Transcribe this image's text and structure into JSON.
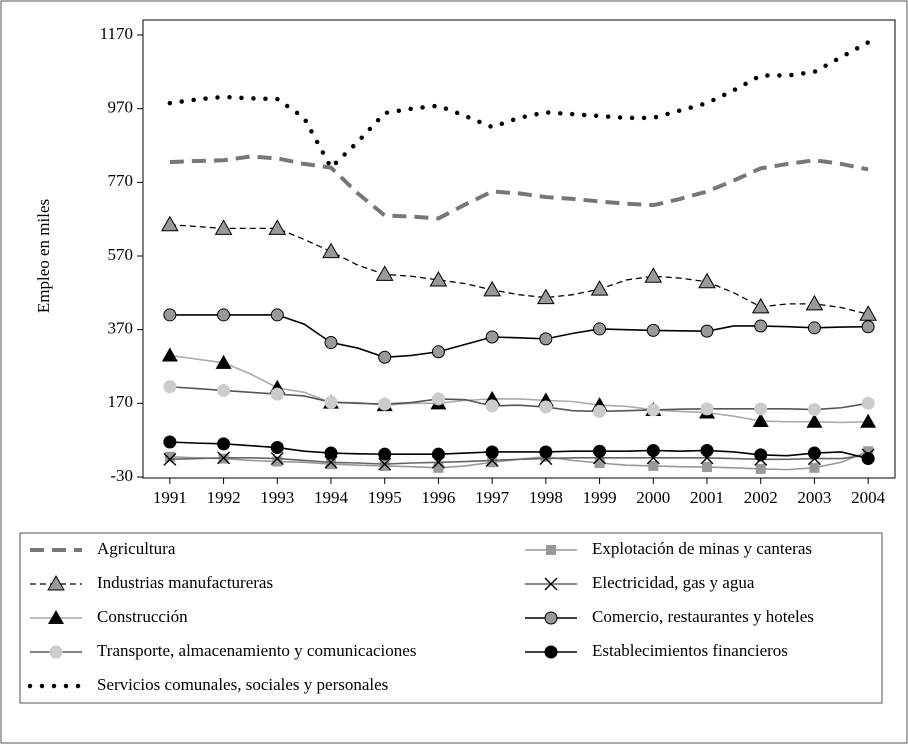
{
  "chart_data": {
    "type": "line",
    "y_label": "Empleo en miles",
    "x": [
      1991,
      1991.5,
      1992,
      1992.5,
      1993,
      1993.5,
      1994,
      1994.5,
      1995,
      1995.5,
      1996,
      1996.5,
      1997,
      1997.5,
      1998,
      1998.5,
      1999,
      1999.5,
      2000,
      2000.5,
      2001,
      2001.5,
      2002,
      2002.5,
      2003,
      2003.5,
      2004
    ],
    "xlim": [
      1990.5,
      2004.5
    ],
    "xticks": [
      1991,
      1992,
      1993,
      1994,
      1995,
      1996,
      1997,
      1998,
      1999,
      2000,
      2001,
      2002,
      2003,
      2004
    ],
    "ylim": [
      -30,
      1170
    ],
    "yticks": [
      -30,
      170,
      370,
      570,
      770,
      970,
      1170
    ],
    "series": [
      {
        "name": "Agricultura",
        "color": "#777777",
        "line_style": "dashed-thick",
        "marker": "none",
        "values": [
          825,
          828,
          830,
          840,
          835,
          820,
          810,
          740,
          680,
          677,
          672,
          710,
          745,
          740,
          730,
          725,
          718,
          712,
          708,
          725,
          745,
          775,
          808,
          820,
          830,
          820,
          805
        ]
      },
      {
        "name": "Industrias manufactureras",
        "color": "#000000",
        "line_style": "dashed",
        "marker": "triangle-gray",
        "values": [
          655,
          650,
          645,
          645,
          645,
          615,
          582,
          545,
          520,
          515,
          505,
          495,
          478,
          465,
          457,
          465,
          480,
          505,
          515,
          510,
          500,
          470,
          432,
          440,
          440,
          430,
          412
        ]
      },
      {
        "name": "Construcción",
        "color": "#aaaaaa",
        "line_style": "solid",
        "marker": "triangle-black",
        "values": [
          300,
          290,
          280,
          250,
          212,
          200,
          172,
          172,
          165,
          170,
          170,
          178,
          182,
          182,
          178,
          175,
          165,
          162,
          152,
          148,
          145,
          135,
          122,
          120,
          120,
          118,
          120
        ]
      },
      {
        "name": "Transporte, almacenamiento y comunicaciones",
        "color": "#555555",
        "line_style": "solid",
        "marker": "circle-lightgray",
        "values": [
          215,
          210,
          205,
          200,
          195,
          190,
          173,
          170,
          168,
          172,
          182,
          180,
          163,
          165,
          160,
          150,
          148,
          150,
          152,
          154,
          155,
          155,
          155,
          155,
          153,
          158,
          170
        ]
      },
      {
        "name": "Servicios comunales, sociales y personales",
        "color": "#000000",
        "line_style": "dotted",
        "marker": "none",
        "values": [
          985,
          995,
          1002,
          998,
          996,
          945,
          810,
          880,
          958,
          970,
          978,
          950,
          920,
          945,
          960,
          955,
          950,
          945,
          945,
          965,
          985,
          1020,
          1060,
          1060,
          1070,
          1110,
          1150
        ]
      },
      {
        "name": "Explotación de minas y canteras",
        "color": "#999999",
        "line_style": "solid",
        "marker": "square-gray",
        "values": [
          25,
          22,
          20,
          15,
          12,
          10,
          5,
          2,
          0,
          -2,
          -5,
          0,
          10,
          18,
          25,
          15,
          8,
          2,
          0,
          -2,
          -3,
          -5,
          -8,
          -10,
          -5,
          10,
          40
        ]
      },
      {
        "name": "Electricidad, gas y agua",
        "color": "#666666",
        "line_style": "solid",
        "marker": "cross",
        "values": [
          18,
          20,
          22,
          22,
          20,
          15,
          10,
          8,
          5,
          8,
          10,
          12,
          15,
          18,
          20,
          22,
          22,
          22,
          22,
          22,
          22,
          20,
          18,
          18,
          20,
          20,
          30
        ]
      },
      {
        "name": "Comercio, restaurantes y hoteles",
        "color": "#000000",
        "line_style": "solid",
        "marker": "circle-gray",
        "values": [
          410,
          410,
          410,
          410,
          410,
          385,
          335,
          320,
          295,
          300,
          310,
          330,
          350,
          348,
          345,
          360,
          372,
          370,
          368,
          367,
          366,
          380,
          380,
          378,
          375,
          377,
          378
        ]
      },
      {
        "name": "Establecimientos financieros",
        "color": "#000000",
        "line_style": "solid",
        "marker": "circle-black",
        "values": [
          65,
          62,
          60,
          55,
          50,
          40,
          35,
          33,
          32,
          32,
          32,
          35,
          38,
          38,
          38,
          40,
          40,
          40,
          42,
          40,
          42,
          38,
          30,
          28,
          35,
          38,
          20
        ]
      }
    ],
    "legend_columns": 2
  }
}
